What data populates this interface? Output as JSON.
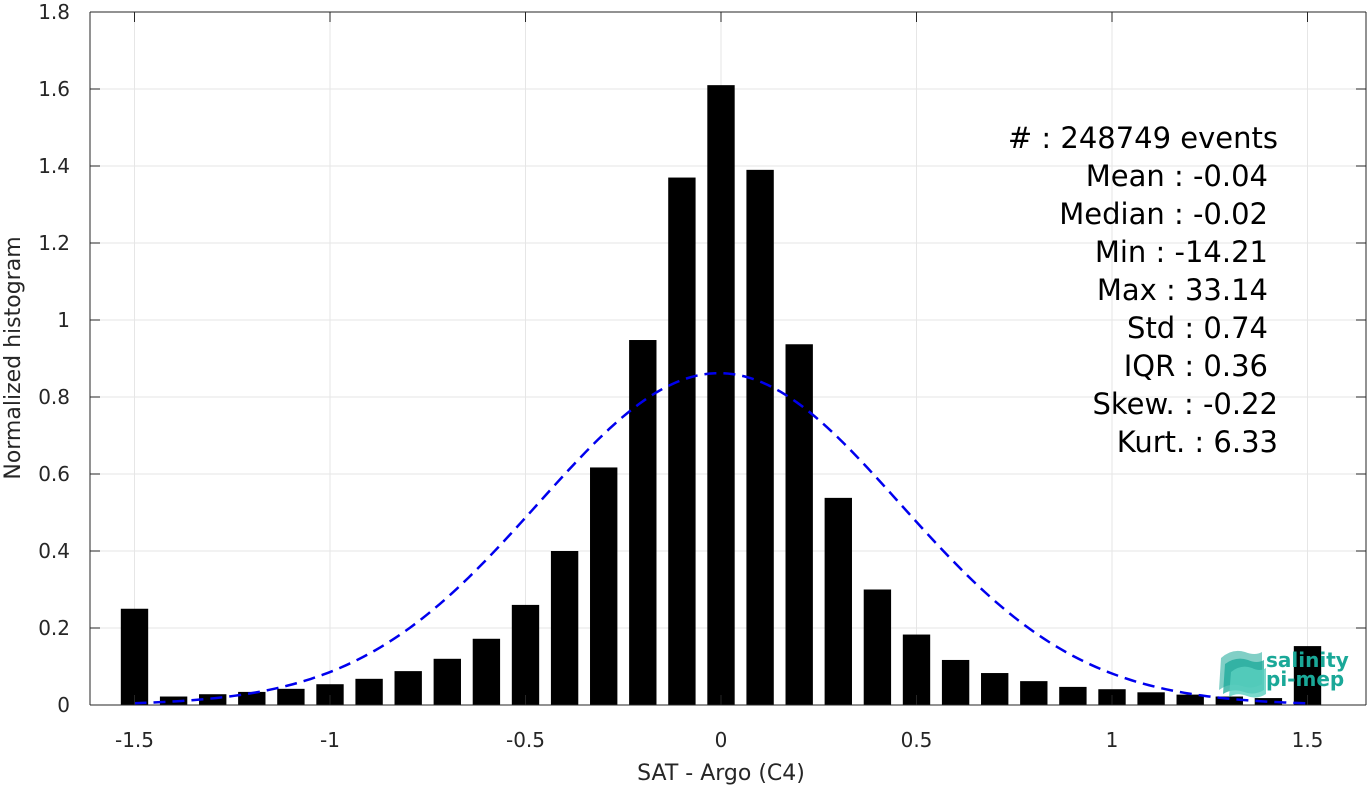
{
  "chart_data": {
    "type": "bar",
    "xlabel": "SAT - Argo (C4)",
    "ylabel": "Normalized histogram",
    "xlim": [
      -1.55,
      1.55
    ],
    "ylim": [
      0,
      1.8
    ],
    "xticks": [
      -1.5,
      -1,
      -0.5,
      0,
      0.5,
      1,
      1.5
    ],
    "xtick_labels": [
      "-1.5",
      "-1",
      "-0.5",
      "0",
      "0.5",
      "1",
      "1.5"
    ],
    "yticks": [
      0,
      0.2,
      0.4,
      0.6,
      0.8,
      1,
      1.2,
      1.4,
      1.6,
      1.8
    ],
    "ytick_labels": [
      "0",
      "0.2",
      "0.4",
      "0.6",
      "0.8",
      "1",
      "1.2",
      "1.4",
      "1.6",
      "1.8"
    ],
    "grid": true,
    "bar_width": 0.07,
    "bar_color": "#000000",
    "bins": [
      {
        "x": -1.5,
        "y": 0.25
      },
      {
        "x": -1.4,
        "y": 0.022
      },
      {
        "x": -1.3,
        "y": 0.028
      },
      {
        "x": -1.2,
        "y": 0.034
      },
      {
        "x": -1.1,
        "y": 0.042
      },
      {
        "x": -1.0,
        "y": 0.054
      },
      {
        "x": -0.9,
        "y": 0.068
      },
      {
        "x": -0.8,
        "y": 0.088
      },
      {
        "x": -0.7,
        "y": 0.12
      },
      {
        "x": -0.6,
        "y": 0.172
      },
      {
        "x": -0.5,
        "y": 0.26
      },
      {
        "x": -0.4,
        "y": 0.4
      },
      {
        "x": -0.3,
        "y": 0.617
      },
      {
        "x": -0.2,
        "y": 0.948
      },
      {
        "x": -0.1,
        "y": 1.37
      },
      {
        "x": 0.0,
        "y": 1.61
      },
      {
        "x": 0.1,
        "y": 1.39
      },
      {
        "x": 0.2,
        "y": 0.937
      },
      {
        "x": 0.3,
        "y": 0.538
      },
      {
        "x": 0.4,
        "y": 0.3
      },
      {
        "x": 0.5,
        "y": 0.183
      },
      {
        "x": 0.6,
        "y": 0.117
      },
      {
        "x": 0.7,
        "y": 0.083
      },
      {
        "x": 0.8,
        "y": 0.062
      },
      {
        "x": 0.9,
        "y": 0.047
      },
      {
        "x": 1.0,
        "y": 0.041
      },
      {
        "x": 1.1,
        "y": 0.033
      },
      {
        "x": 1.2,
        "y": 0.027
      },
      {
        "x": 1.3,
        "y": 0.022
      },
      {
        "x": 1.4,
        "y": 0.018
      },
      {
        "x": 1.5,
        "y": 0.153
      }
    ],
    "fit_curve": {
      "style": "dashed",
      "color": "#0000ee",
      "mean": -0.005,
      "std": 0.463,
      "peak": 0.862,
      "x_range": [
        -1.5,
        1.5
      ]
    },
    "stats_lines": [
      "#  : 248749 events",
      "Mean : -0.04",
      "Median : -0.02",
      "Min : -14.21",
      "Max : 33.14",
      "Std : 0.74",
      "IQR : 0.36",
      "Skew. : -0.22",
      "Kurt. : 6.33"
    ]
  },
  "logo": {
    "line1": "salinity",
    "line2": "pi-mep",
    "color": "#1aa898"
  }
}
